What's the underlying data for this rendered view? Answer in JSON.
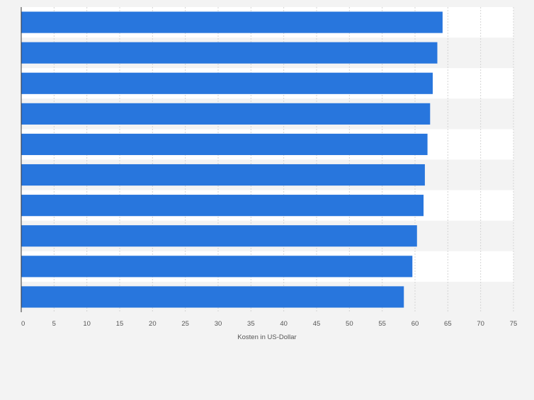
{
  "chart_data": {
    "type": "bar",
    "orientation": "horizontal",
    "categories": [
      "",
      "",
      "",
      "",
      "",
      "",
      "",
      "",
      "",
      ""
    ],
    "values": [
      64.2,
      63.4,
      62.7,
      62.3,
      61.9,
      61.5,
      61.3,
      60.3,
      59.6,
      58.3
    ],
    "xlabel": "Kosten in US-Dollar",
    "ylabel": "",
    "xlim": [
      0,
      75
    ],
    "xticks": [
      0,
      5,
      10,
      15,
      20,
      25,
      30,
      35,
      40,
      45,
      50,
      55,
      60,
      65,
      70,
      75
    ],
    "grid": true,
    "legend": "none",
    "bar_color": "#2876dd"
  }
}
